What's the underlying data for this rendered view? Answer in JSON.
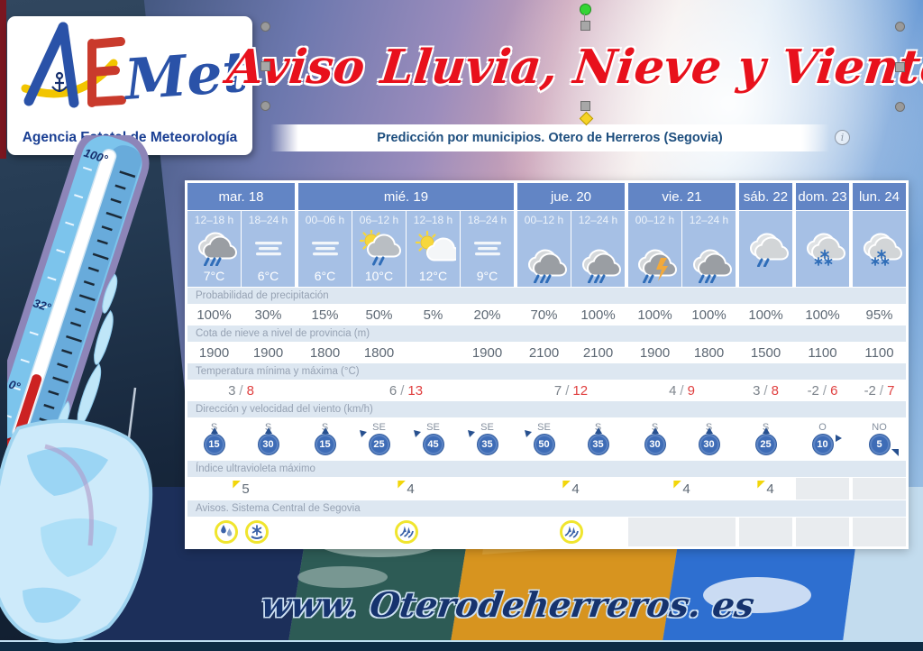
{
  "logo": {
    "name": "AEMet",
    "subtitle": "Agencia Estatal de Meteorología"
  },
  "title": {
    "text": "Aviso Lluvia, Nieve y Viento"
  },
  "header_bar": {
    "title": "Predicción por municipios. Otero de Herreros (Segovia)",
    "info_glyph": "i"
  },
  "footer": {
    "url": "www. Oterodeherreros. es"
  },
  "thermometer": {
    "labels": [
      "100°",
      "32°",
      "0°"
    ]
  },
  "forecast": {
    "days": [
      {
        "label": "mar. 18",
        "cols": 2
      },
      {
        "label": "mié. 19",
        "cols": 4
      },
      {
        "label": "jue. 20",
        "cols": 2
      },
      {
        "label": "vie. 21",
        "cols": 2
      },
      {
        "label": "sáb. 22",
        "cols": 1
      },
      {
        "label": "dom. 23",
        "cols": 1
      },
      {
        "label": "lun. 24",
        "cols": 1
      }
    ],
    "columns": [
      {
        "period": "12–18 h",
        "icon": "rain",
        "temp": "7°C"
      },
      {
        "period": "18–24 h",
        "icon": "fog",
        "temp": "6°C"
      },
      {
        "period": "00–06 h",
        "icon": "fog",
        "temp": "6°C"
      },
      {
        "period": "06–12 h",
        "icon": "sun-cloud-rain",
        "temp": "10°C"
      },
      {
        "period": "12–18 h",
        "icon": "sun-cloud",
        "temp": "12°C"
      },
      {
        "period": "18–24 h",
        "icon": "fog",
        "temp": "9°C"
      },
      {
        "period": "00–12 h",
        "icon": "rain",
        "temp": ""
      },
      {
        "period": "12–24 h",
        "icon": "rain",
        "temp": ""
      },
      {
        "period": "00–12 h",
        "icon": "storm",
        "temp": ""
      },
      {
        "period": "12–24 h",
        "icon": "rain",
        "temp": ""
      },
      {
        "period": "",
        "icon": "rain-light",
        "temp": ""
      },
      {
        "period": "",
        "icon": "snow",
        "temp": ""
      },
      {
        "period": "",
        "icon": "snow",
        "temp": ""
      }
    ],
    "rows": {
      "precipitation": {
        "label": "Probabilidad de precipitación",
        "values": [
          "100%",
          "30%",
          "15%",
          "50%",
          "5%",
          "20%",
          "70%",
          "100%",
          "100%",
          "100%",
          "100%",
          "100%",
          "95%"
        ]
      },
      "snow_level": {
        "label": "Cota de nieve a nivel de provincia (m)",
        "values": [
          "1900",
          "1900",
          "1800",
          "1800",
          "",
          "1900",
          "2100",
          "2100",
          "1900",
          "1800",
          "1500",
          "1100",
          "1100"
        ]
      },
      "temperature": {
        "label": "Temperatura mínima y máxima (°C)",
        "values": [
          {
            "min": "3",
            "max": "8"
          },
          {
            "min": "6",
            "max": "13"
          },
          {
            "min": "7",
            "max": "12"
          },
          {
            "min": "4",
            "max": "9"
          },
          {
            "min": "3",
            "max": "8"
          },
          {
            "min": "-2",
            "max": "6"
          },
          {
            "min": "-2",
            "max": "7"
          }
        ]
      },
      "wind": {
        "label": "Dirección y velocidad del viento (km/h)",
        "values": [
          {
            "dir": "S",
            "speed": "15"
          },
          {
            "dir": "S",
            "speed": "30"
          },
          {
            "dir": "S",
            "speed": "15"
          },
          {
            "dir": "SE",
            "speed": "25"
          },
          {
            "dir": "SE",
            "speed": "45"
          },
          {
            "dir": "SE",
            "speed": "35"
          },
          {
            "dir": "SE",
            "speed": "50"
          },
          {
            "dir": "S",
            "speed": "35"
          },
          {
            "dir": "S",
            "speed": "30"
          },
          {
            "dir": "S",
            "speed": "30"
          },
          {
            "dir": "S",
            "speed": "25"
          },
          {
            "dir": "O",
            "speed": "10"
          },
          {
            "dir": "NO",
            "speed": "5"
          }
        ]
      },
      "uv": {
        "label": "Índice ultravioleta máximo",
        "values": [
          "5",
          "4",
          "4",
          "4",
          "4",
          "",
          ""
        ]
      },
      "warnings": {
        "label": "Avisos. Sistema Central de Segovia",
        "values": [
          [
            "rain-warning",
            "snow-warning"
          ],
          [
            "wind-warning"
          ],
          [
            "wind-warning"
          ],
          [],
          [],
          [],
          []
        ]
      }
    }
  },
  "colors": {
    "title_red": "#e8111c",
    "day_header_blue": "#6285c5",
    "period_cell_blue": "#a6c0e5",
    "warning_yellow": "#f0e52e",
    "max_temp_red": "#e04040",
    "wind_circle_blue": "#3e6cb6"
  }
}
